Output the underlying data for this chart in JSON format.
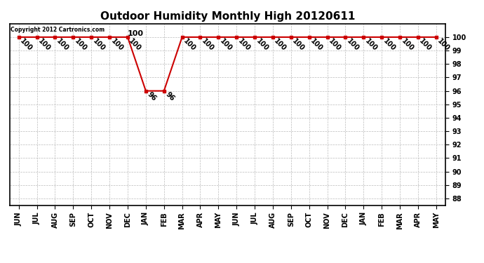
{
  "title": "Outdoor Humidity Monthly High 20120611",
  "copyright_text": "Copyright 2012 Cartronics.com",
  "months": [
    "JUN",
    "JUL",
    "AUG",
    "SEP",
    "OCT",
    "NOV",
    "DEC",
    "JAN",
    "FEB",
    "MAR",
    "APR",
    "MAY",
    "JUN",
    "JUL",
    "AUG",
    "SEP",
    "OCT",
    "NOV",
    "DEC",
    "JAN",
    "FEB",
    "MAR",
    "APR",
    "MAY"
  ],
  "values": [
    100,
    100,
    100,
    100,
    100,
    100,
    100,
    96,
    96,
    100,
    100,
    100,
    100,
    100,
    100,
    100,
    100,
    100,
    100,
    100,
    100,
    100,
    100,
    100
  ],
  "ylim": [
    87.5,
    101.0
  ],
  "yticks": [
    88,
    89,
    90,
    91,
    92,
    93,
    94,
    95,
    96,
    97,
    98,
    99,
    100
  ],
  "line_color": "#cc0000",
  "marker": "s",
  "marker_size": 3,
  "background_color": "#ffffff",
  "grid_color": "#bbbbbb",
  "title_fontsize": 11,
  "tick_fontsize": 7,
  "annotation_fontsize": 7,
  "label_rotation": 315,
  "dip_indices": [
    7,
    8
  ],
  "dip_values": [
    96,
    96
  ],
  "hundred_annotation_index": 6
}
